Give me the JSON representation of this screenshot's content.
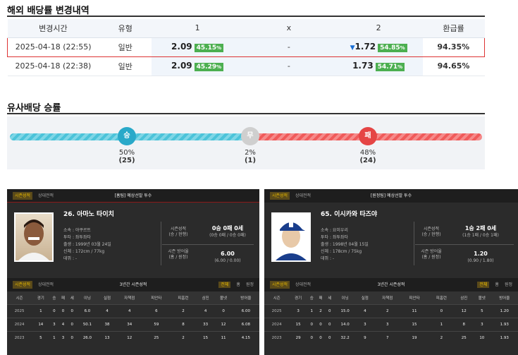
{
  "overseas": {
    "title": "해외 배당률 변경내역",
    "headers": [
      "변경시간",
      "유형",
      "1",
      "x",
      "2",
      "환급률"
    ],
    "rows": [
      {
        "time": "2025-04-18 (22:55)",
        "type": "일반",
        "v1": "2.09",
        "p1": "45.15",
        "px": "%",
        "vx": "-",
        "v2": "1.72",
        "p2": "54.85",
        "refund": "94.35%"
      },
      {
        "time": "2025-04-18 (22:38)",
        "type": "일반",
        "v1": "2.09",
        "p1": "45.29",
        "vx": "-",
        "v2": "1.73",
        "p2": "54.71",
        "refund": "94.65%"
      }
    ]
  },
  "similar": {
    "title": "유사배당 승률",
    "win": {
      "icon": "승",
      "pct": "50%",
      "count": "(25)"
    },
    "draw": {
      "icon": "무",
      "pct": "2%",
      "count": "(1)"
    },
    "lose": {
      "icon": "패",
      "pct": "48%",
      "count": "(24)"
    },
    "colors": {
      "win": "#4cc3d9",
      "draw": "#cccccc",
      "lose": "#f05a5a"
    }
  },
  "left": {
    "tab1": "시즌성적",
    "tab2": "상대전적",
    "header": "[홈팀] 예상선발 투수",
    "name": "26. 아마노 타이치",
    "info": [
      "소속 : 야쿠르트",
      "투타 : 좌투좌타",
      "출생 : 1999년 03월 24일",
      "신체 : 172cm / 77kg",
      "데뷔 : -"
    ],
    "rec_label": "시즌성적\n(승 / 현행)",
    "rec_val": "0승 0패 0세",
    "rec_sub": "(0승 0패 / 0승 0패)",
    "era_label": "시즌 방어율\n(홈 / 원정)",
    "era_val": "6.00",
    "era_sub": "(6.00 / 0.00)"
  },
  "right": {
    "tab1": "시즌성적",
    "tab2": "상대전적",
    "header": "[원정팀] 예상선발 투수",
    "name": "65. 이시카와 타즈야",
    "info": [
      "소속 : 요미우리",
      "투타 : 좌투좌타",
      "출생 : 1998년 04월 15일",
      "신체 : 178cm / 75kg",
      "데뷔 : -"
    ],
    "rec_label": "시즌성적\n(승 / 현행)",
    "rec_val": "1승 2패 0세",
    "rec_sub": "(1승 1패 / 0승 1패)",
    "era_label": "시즌 방어율\n(홈 / 원정)",
    "era_val": "1.20",
    "era_sub": "(0.90 / 1.80)"
  },
  "stats": {
    "tab1": "시즌성적",
    "tab2": "상대전적",
    "title": "3년간 시즌성적",
    "filters": [
      "전체",
      "홈",
      "원정"
    ],
    "cols": [
      "시즌",
      "경기",
      "승",
      "패",
      "세",
      "이닝",
      "실점",
      "자책점",
      "피안타",
      "피홈런",
      "삼진",
      "볼넷",
      "방어율"
    ],
    "left_rows": [
      [
        "2025",
        "1",
        "0",
        "0",
        "0",
        "6.0",
        "4",
        "4",
        "6",
        "2",
        "4",
        "0",
        "6.00"
      ],
      [
        "2024",
        "14",
        "3",
        "4",
        "0",
        "50.1",
        "38",
        "34",
        "59",
        "8",
        "33",
        "12",
        "6.08"
      ],
      [
        "2023",
        "5",
        "1",
        "3",
        "0",
        "26.0",
        "13",
        "12",
        "25",
        "2",
        "15",
        "11",
        "4.15"
      ]
    ],
    "right_rows": [
      [
        "2025",
        "3",
        "1",
        "2",
        "0",
        "15.0",
        "4",
        "2",
        "11",
        "0",
        "12",
        "5",
        "1.20"
      ],
      [
        "2024",
        "15",
        "0",
        "0",
        "0",
        "14.0",
        "3",
        "3",
        "15",
        "1",
        "8",
        "3",
        "1.93"
      ],
      [
        "2023",
        "29",
        "0",
        "0",
        "0",
        "32.2",
        "9",
        "7",
        "19",
        "2",
        "25",
        "10",
        "1.93"
      ]
    ]
  }
}
